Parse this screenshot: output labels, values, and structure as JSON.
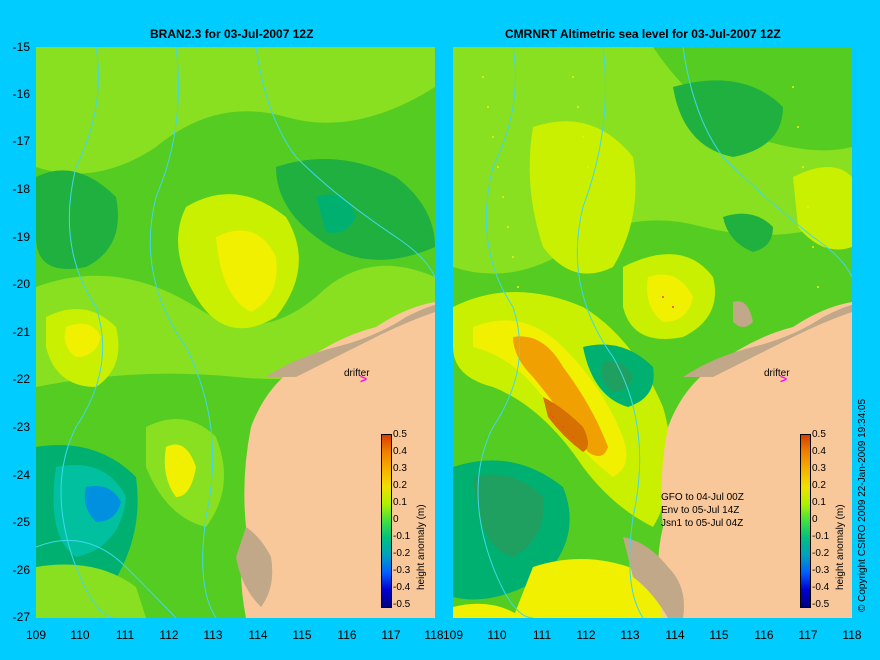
{
  "left_panel": {
    "title": "BRAN2.3 for 03-Jul-2007 12Z"
  },
  "right_panel": {
    "title": "CMRNRT Altimetric sea level  for 03-Jul-2007 12Z"
  },
  "y_axis_ticks": [
    "-15",
    "-16",
    "-17",
    "-18",
    "-19",
    "-20",
    "-21",
    "-22",
    "-23",
    "-24",
    "-25",
    "-26",
    "-27"
  ],
  "x_axis_ticks": [
    "109",
    "110",
    "111",
    "112",
    "113",
    "114",
    "115",
    "116",
    "117",
    "118"
  ],
  "drifter_label": "drifter",
  "drifter_marker": ">",
  "colorbar": {
    "label": "height anomaly (m)",
    "ticks": [
      "0.5",
      "0.4",
      "0.3",
      "0.2",
      "0.1",
      "0",
      "-0.1",
      "-0.2",
      "-0.3",
      "-0.4",
      "-0.5"
    ],
    "colors": [
      "#d64000",
      "#f08000",
      "#f5b000",
      "#f0e000",
      "#b0f000",
      "#40e040",
      "#00c080",
      "#00a0c0",
      "#0060ff",
      "#0000d0"
    ]
  },
  "satellite_info": [
    "GFO to 04-Jul 00Z",
    "Env to 05-Jul 14Z",
    "Jsn1 to 05-Jul 04Z"
  ],
  "copyright": "© Copyright CSIRO 2009  22-Jan-2009 19:34:05",
  "colors": {
    "background": "#00ccff",
    "land": "#f8c89a",
    "shelf": "#c0a888",
    "green_mid": "#55cc22",
    "green_light": "#88e020",
    "yellow_green": "#c8f000",
    "yellow": "#f0f000",
    "orange": "#f0a000",
    "teal": "#00b070",
    "blue": "#0090e0",
    "contour": "#40d8e8",
    "drifter": "#ff00ff"
  }
}
